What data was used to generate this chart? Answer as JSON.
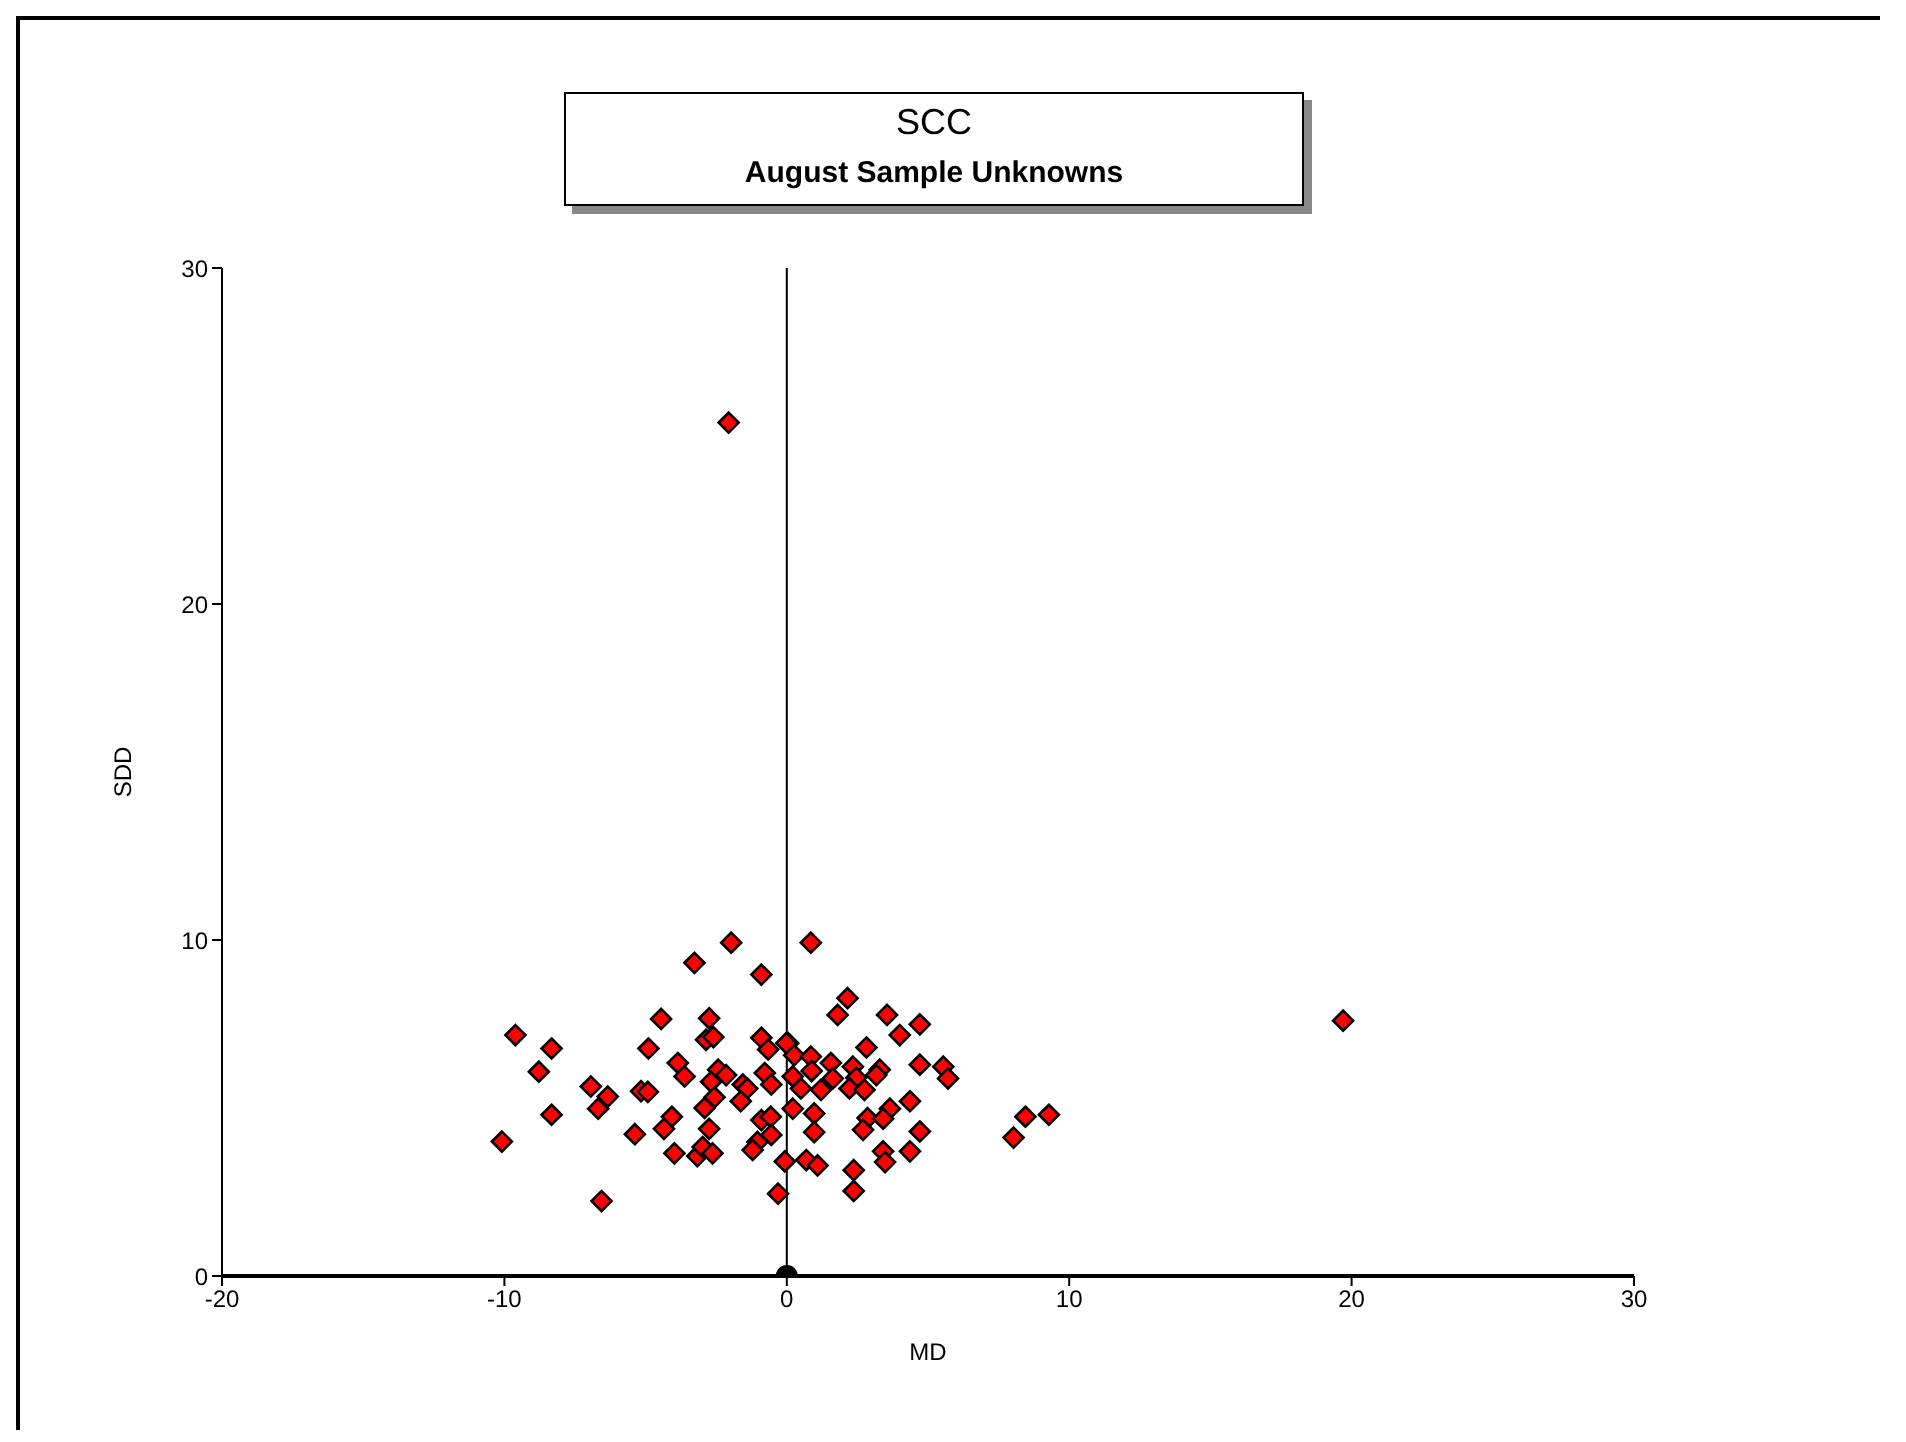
{
  "chart_data": {
    "type": "scatter",
    "title": "SCC",
    "subtitle": "August Sample Unknowns",
    "xlabel": "MD",
    "ylabel": "SDD",
    "xlim": [
      -20,
      30
    ],
    "xticks": [
      -20,
      -10,
      0,
      10,
      20,
      30
    ],
    "ylim": [
      0,
      30
    ],
    "yticks": [
      0,
      10,
      20,
      30
    ],
    "ref_lines": [
      {
        "axis": "x",
        "value": 0,
        "color": "#000000"
      }
    ],
    "series": [
      {
        "color": "#ff0000",
        "marker": "diamond",
        "x": [
          -2.06,
          19.7,
          -1.97,
          -3.27,
          -0.9,
          -4.45,
          -2.75,
          -9.61,
          -8.33,
          -2.86,
          -2.6,
          -4.9,
          -0.9,
          -0.66,
          0.05,
          -8.78,
          -3.86,
          -3.62,
          -2.43,
          -2.15,
          -2.68,
          -0.78,
          -0.55,
          -6.94,
          -6.34,
          -6.68,
          -5.16,
          -4.92,
          -2.56,
          -1.56,
          -1.4,
          -1.63,
          -8.33,
          -2.91,
          -4.07,
          -4.35,
          -5.38,
          -2.75,
          -0.9,
          -0.57,
          -0.55,
          -1.04,
          -1.21,
          -10.09,
          -3.98,
          -3.17,
          -2.98,
          -2.63,
          -0.07,
          -0.31,
          -6.56,
          0.85,
          2.15,
          1.8,
          3.55,
          4.71,
          4.0,
          -0.02,
          0.26,
          2.82,
          0.85,
          1.56,
          2.34,
          3.29,
          4.71,
          5.54,
          5.71,
          3.17,
          0.88,
          0.21,
          1.63,
          2.46,
          0.5,
          1.21,
          2.22,
          2.75,
          4.36,
          0.21,
          0.97,
          2.86,
          3.65,
          3.41,
          4.71,
          0.97,
          2.7,
          8.45,
          9.28,
          8.03,
          4.36,
          3.41,
          3.48,
          0.69,
          1.09,
          2.37,
          2.37
        ],
        "values": [
          25.4,
          7.6,
          9.92,
          9.32,
          8.97,
          7.65,
          7.67,
          7.17,
          6.77,
          7.03,
          7.11,
          6.77,
          7.09,
          6.74,
          6.93,
          6.08,
          6.34,
          5.94,
          6.14,
          5.98,
          5.78,
          6.04,
          5.7,
          5.64,
          5.34,
          4.98,
          5.5,
          5.48,
          5.32,
          5.7,
          5.58,
          5.2,
          4.8,
          5.0,
          4.74,
          4.38,
          4.22,
          4.38,
          4.64,
          4.74,
          4.2,
          3.99,
          3.75,
          4.0,
          3.65,
          3.57,
          3.84,
          3.65,
          3.41,
          2.45,
          2.23,
          9.92,
          8.27,
          7.77,
          7.77,
          7.49,
          7.17,
          6.93,
          6.57,
          6.8,
          6.53,
          6.34,
          6.23,
          6.14,
          6.29,
          6.23,
          5.88,
          5.98,
          6.1,
          5.94,
          5.88,
          5.9,
          5.58,
          5.54,
          5.58,
          5.54,
          5.2,
          4.98,
          4.84,
          4.7,
          4.98,
          4.68,
          4.3,
          4.28,
          4.35,
          4.74,
          4.8,
          4.12,
          3.71,
          3.71,
          3.39,
          3.45,
          3.29,
          3.15,
          2.53
        ]
      },
      {
        "color": "#000000",
        "marker": "circle",
        "x": [
          0
        ],
        "values": [
          0
        ]
      }
    ]
  }
}
